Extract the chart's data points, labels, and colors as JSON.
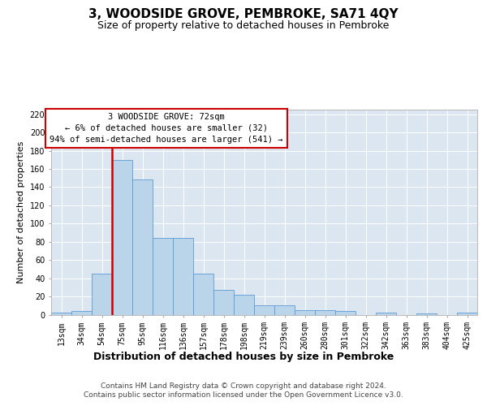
{
  "title": "3, WOODSIDE GROVE, PEMBROKE, SA71 4QY",
  "subtitle": "Size of property relative to detached houses in Pembroke",
  "xlabel": "Distribution of detached houses by size in Pembroke",
  "ylabel": "Number of detached properties",
  "categories": [
    "13sqm",
    "34sqm",
    "54sqm",
    "75sqm",
    "95sqm",
    "116sqm",
    "136sqm",
    "157sqm",
    "178sqm",
    "198sqm",
    "219sqm",
    "239sqm",
    "260sqm",
    "280sqm",
    "301sqm",
    "322sqm",
    "342sqm",
    "363sqm",
    "383sqm",
    "404sqm",
    "425sqm"
  ],
  "values": [
    2,
    4,
    45,
    170,
    148,
    84,
    84,
    45,
    27,
    22,
    10,
    10,
    5,
    5,
    4,
    0,
    2,
    0,
    1,
    0,
    2
  ],
  "bar_color": "#bad4ea",
  "bar_edge_color": "#5b9bd5",
  "vline_x_idx": 3,
  "vline_color": "#cc0000",
  "annotation_line1": "3 WOODSIDE GROVE: 72sqm",
  "annotation_line2": "← 6% of detached houses are smaller (32)",
  "annotation_line3": "94% of semi-detached houses are larger (541) →",
  "annotation_box_color": "#ffffff",
  "annotation_box_edge": "#cc0000",
  "ylim": [
    0,
    225
  ],
  "yticks": [
    0,
    20,
    40,
    60,
    80,
    100,
    120,
    140,
    160,
    180,
    200,
    220
  ],
  "bg_color": "#dce6f1",
  "fig_bg_color": "#ffffff",
  "footer_line1": "Contains HM Land Registry data © Crown copyright and database right 2024.",
  "footer_line2": "Contains public sector information licensed under the Open Government Licence v3.0.",
  "title_fontsize": 11,
  "subtitle_fontsize": 9,
  "xlabel_fontsize": 9,
  "ylabel_fontsize": 8,
  "tick_fontsize": 7,
  "ann_fontsize": 7.5,
  "footer_fontsize": 6.5
}
